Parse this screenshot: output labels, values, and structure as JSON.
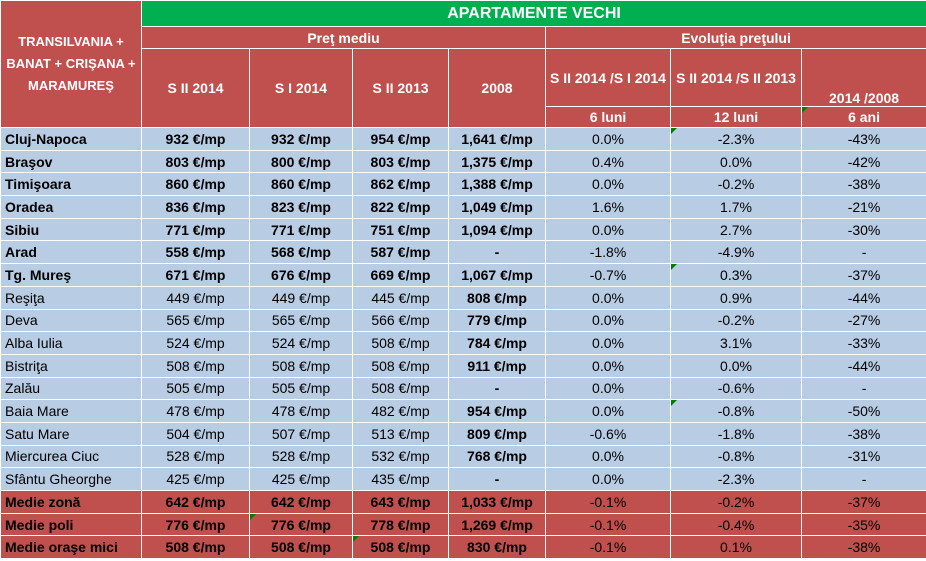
{
  "header": {
    "region": "TRANSILVANIA + BANAT + CRIŞANA + MARAMUREŞ",
    "title": "APARTAMENTE VECHI",
    "price_group": "Preţ mediu",
    "evolution_group": "Evoluţia preţului",
    "cols": [
      "S II 2014",
      "S I 2014",
      "S II 2013",
      "2008"
    ],
    "evo_cols": [
      "S II 2014 /S I 2014",
      "S II 2014 /S II 2013",
      "2014 /2008"
    ],
    "evo_sub": [
      "6 luni",
      "12 luni",
      "6 ani"
    ]
  },
  "rows": [
    {
      "city": "Cluj-Napoca",
      "v": [
        "932 €/mp",
        "932 €/mp",
        "954 €/mp",
        "1,641 €/mp"
      ],
      "e": [
        "0.0%",
        "-2.3%",
        "-43%"
      ],
      "bold": true,
      "b2008": true,
      "tri": [
        false,
        false,
        false,
        false,
        false,
        false,
        true
      ]
    },
    {
      "city": "Braşov",
      "v": [
        "803 €/mp",
        "800 €/mp",
        "803 €/mp",
        "1,375 €/mp"
      ],
      "e": [
        "0.4%",
        "0.0%",
        "-42%"
      ],
      "bold": true,
      "b2008": true,
      "tri": [
        false,
        false,
        false,
        false,
        false,
        false,
        false
      ]
    },
    {
      "city": "Timişoara",
      "v": [
        "860 €/mp",
        "860 €/mp",
        "862 €/mp",
        "1,388 €/mp"
      ],
      "e": [
        "0.0%",
        "-0.2%",
        "-38%"
      ],
      "bold": true,
      "b2008": true,
      "tri": [
        false,
        false,
        false,
        false,
        false,
        false,
        false
      ]
    },
    {
      "city": "Oradea",
      "v": [
        "836 €/mp",
        "823 €/mp",
        "822 €/mp",
        "1,049 €/mp"
      ],
      "e": [
        "1.6%",
        "1.7%",
        "-21%"
      ],
      "bold": true,
      "b2008": true,
      "tri": [
        false,
        false,
        false,
        false,
        false,
        false,
        false
      ]
    },
    {
      "city": "Sibiu",
      "v": [
        "771 €/mp",
        "771 €/mp",
        "751 €/mp",
        "1,094 €/mp"
      ],
      "e": [
        "0.0%",
        "2.7%",
        "-30%"
      ],
      "bold": true,
      "b2008": true,
      "tri": [
        false,
        false,
        false,
        false,
        false,
        false,
        false
      ]
    },
    {
      "city": "Arad",
      "v": [
        "558 €/mp",
        "568 €/mp",
        "587 €/mp",
        "-"
      ],
      "e": [
        "-1.8%",
        "-4.9%",
        "-"
      ],
      "bold": true,
      "b2008": true,
      "tri": [
        false,
        false,
        false,
        false,
        false,
        false,
        false
      ]
    },
    {
      "city": "Tg. Mureş",
      "v": [
        "671 €/mp",
        "676 €/mp",
        "669 €/mp",
        "1,067 €/mp"
      ],
      "e": [
        "-0.7%",
        "0.3%",
        "-37%"
      ],
      "bold": true,
      "b2008": true,
      "tri": [
        false,
        false,
        false,
        false,
        false,
        false,
        true
      ]
    },
    {
      "city": "Reşiţa",
      "v": [
        "449 €/mp",
        "449 €/mp",
        "445 €/mp",
        "808 €/mp"
      ],
      "e": [
        "0.0%",
        "0.9%",
        "-44%"
      ],
      "bold": false,
      "b2008": true,
      "tri": [
        false,
        false,
        false,
        false,
        false,
        false,
        false
      ]
    },
    {
      "city": "Deva",
      "v": [
        "565 €/mp",
        "565 €/mp",
        "566 €/mp",
        "779 €/mp"
      ],
      "e": [
        "0.0%",
        "-0.2%",
        "-27%"
      ],
      "bold": false,
      "b2008": true,
      "tri": [
        false,
        false,
        false,
        false,
        false,
        false,
        false
      ]
    },
    {
      "city": "Alba Iulia",
      "v": [
        "524 €/mp",
        "524 €/mp",
        "508 €/mp",
        "784 €/mp"
      ],
      "e": [
        "0.0%",
        "3.1%",
        "-33%"
      ],
      "bold": false,
      "b2008": true,
      "tri": [
        false,
        false,
        false,
        false,
        false,
        false,
        false
      ]
    },
    {
      "city": "Bistriţa",
      "v": [
        "508 €/mp",
        "508 €/mp",
        "508 €/mp",
        "911 €/mp"
      ],
      "e": [
        "0.0%",
        "0.0%",
        "-44%"
      ],
      "bold": false,
      "b2008": true,
      "tri": [
        false,
        false,
        false,
        false,
        false,
        false,
        false
      ]
    },
    {
      "city": "Zalău",
      "v": [
        "505 €/mp",
        "505 €/mp",
        "508 €/mp",
        "-"
      ],
      "e": [
        "0.0%",
        "-0.6%",
        "-"
      ],
      "bold": false,
      "b2008": true,
      "tri": [
        false,
        false,
        false,
        false,
        false,
        false,
        false
      ]
    },
    {
      "city": "Baia Mare",
      "v": [
        "478 €/mp",
        "478 €/mp",
        "482 €/mp",
        "954 €/mp"
      ],
      "e": [
        "0.0%",
        "-0.8%",
        "-50%"
      ],
      "bold": false,
      "b2008": true,
      "tri": [
        false,
        false,
        false,
        false,
        false,
        false,
        true
      ]
    },
    {
      "city": "Satu Mare",
      "v": [
        "504 €/mp",
        "507 €/mp",
        "513 €/mp",
        "809 €/mp"
      ],
      "e": [
        "-0.6%",
        "-1.8%",
        "-38%"
      ],
      "bold": false,
      "b2008": true,
      "tri": [
        false,
        false,
        false,
        false,
        false,
        false,
        false
      ]
    },
    {
      "city": "Miercurea Ciuc",
      "v": [
        "528 €/mp",
        "528 €/mp",
        "532 €/mp",
        "768 €/mp"
      ],
      "e": [
        "0.0%",
        "-0.8%",
        "-31%"
      ],
      "bold": false,
      "b2008": true,
      "tri": [
        false,
        false,
        false,
        false,
        false,
        false,
        false
      ]
    },
    {
      "city": "Sfântu Gheorghe",
      "v": [
        "425 €/mp",
        "425 €/mp",
        "435 €/mp",
        "-"
      ],
      "e": [
        "0.0%",
        "-2.3%",
        "-"
      ],
      "bold": false,
      "b2008": true,
      "tri": [
        false,
        false,
        false,
        false,
        false,
        false,
        false
      ]
    }
  ],
  "summary": [
    {
      "city": "Medie zonă",
      "v": [
        "642 €/mp",
        "642 €/mp",
        "643 €/mp",
        "1,033 €/mp"
      ],
      "e": [
        "-0.1%",
        "-0.2%",
        "-37%"
      ],
      "tri": [
        false,
        false,
        false,
        false,
        false,
        false,
        false
      ]
    },
    {
      "city": "Medie poli",
      "v": [
        "776 €/mp",
        "776 €/mp",
        "778 €/mp",
        "1,269 €/mp"
      ],
      "e": [
        "-0.1%",
        "-0.4%",
        "-35%"
      ],
      "tri": [
        false,
        false,
        true,
        false,
        false,
        false,
        false
      ]
    },
    {
      "city": "Medie oraşe mici",
      "v": [
        "508 €/mp",
        "508 €/mp",
        "508 €/mp",
        "830 €/mp"
      ],
      "e": [
        "-0.1%",
        "0.1%",
        "-38%"
      ],
      "tri": [
        false,
        false,
        false,
        true,
        false,
        false,
        false
      ]
    }
  ],
  "colors": {
    "green": "#00b050",
    "red": "#c0504d",
    "blue": "#b8cce4",
    "white": "#ffffff"
  }
}
